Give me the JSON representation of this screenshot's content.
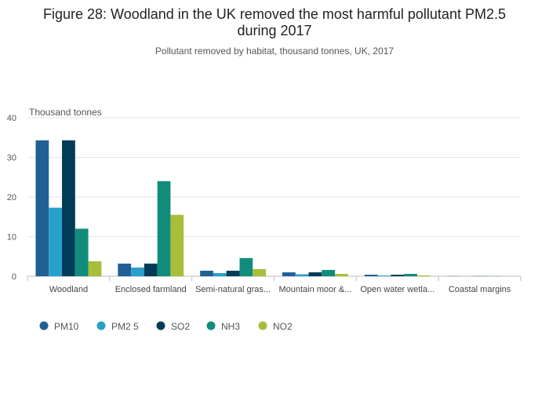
{
  "chart_data": {
    "type": "bar",
    "title_line1": "Figure 28: Woodland in the UK removed the most harmful pollutant PM2.5",
    "title_line2": "during 2017",
    "subtitle": "Pollutant removed by habitat, thousand tonnes, UK, 2017",
    "ylabel": "Thousand tonnes",
    "ylim": [
      0,
      40
    ],
    "yticks": [
      0,
      10,
      20,
      30,
      40
    ],
    "grid": true,
    "legend_position": "bottom-left",
    "categories": [
      "Woodland",
      "Enclosed farmland",
      "Semi-natural gras...",
      "Mountain moor &...",
      "Open water wetla...",
      "Coastal margins"
    ],
    "series": [
      {
        "name": "PM10",
        "color": "#206095",
        "values": [
          34.3,
          3.2,
          1.4,
          1.0,
          0.4,
          0.05
        ]
      },
      {
        "name": "PM2 5",
        "color": "#27a0cc",
        "values": [
          17.3,
          2.2,
          0.8,
          0.5,
          0.2,
          0.02
        ]
      },
      {
        "name": "SO2",
        "color": "#003c57",
        "values": [
          34.3,
          3.2,
          1.4,
          1.0,
          0.4,
          0.05
        ]
      },
      {
        "name": "NH3",
        "color": "#118c7b",
        "values": [
          12.0,
          24.0,
          4.6,
          1.6,
          0.6,
          0.05
        ]
      },
      {
        "name": "NO2",
        "color": "#a8bd3a",
        "values": [
          3.8,
          15.5,
          1.8,
          0.6,
          0.2,
          0.02
        ]
      }
    ]
  }
}
